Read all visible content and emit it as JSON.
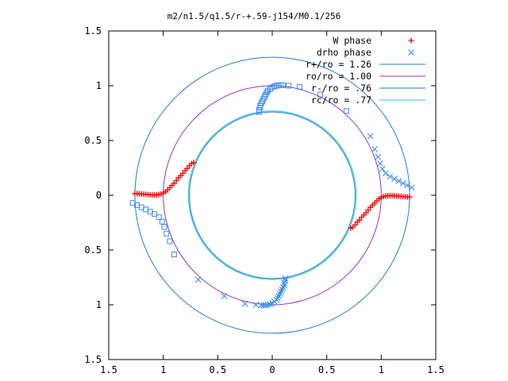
{
  "chart_data": {
    "type": "scatter",
    "title": "m2/n1.5/q1.5/r-+.59-j154/M0.1/256",
    "xlabel": "",
    "ylabel": "",
    "xlim": [
      -1.5,
      1.5
    ],
    "ylim": [
      -1.5,
      1.5
    ],
    "x_ticks": [
      -1.5,
      -1,
      -0.5,
      0,
      0.5,
      1,
      1.5
    ],
    "y_ticks": [
      -1.5,
      -1,
      -0.5,
      0,
      0.5,
      1,
      1.5
    ],
    "x_tick_labels": [
      "1.5",
      "1",
      "0.5",
      "0",
      "0.5",
      "1",
      "1.5"
    ],
    "y_tick_labels": [
      "1.5",
      "1",
      "0.5",
      "0",
      "0.5",
      "1",
      "1.5"
    ],
    "grid": false,
    "legend_position": "top-right",
    "series": [
      {
        "name": "W phase",
        "kind": "points",
        "marker": "plus",
        "color": "#ff0000",
        "branches": [
          {
            "points": [
              [
                -1.26,
                0.015
              ],
              [
                -1.24,
                0.015
              ],
              [
                -1.22,
                0.013
              ],
              [
                -1.2,
                0.012
              ],
              [
                -1.18,
                0.01
              ],
              [
                -1.16,
                0.008
              ],
              [
                -1.14,
                0.006
              ],
              [
                -1.12,
                0.004
              ],
              [
                -1.1,
                0.003
              ],
              [
                -1.08,
                0.003
              ],
              [
                -1.06,
                0.004
              ],
              [
                -1.04,
                0.007
              ],
              [
                -1.02,
                0.012
              ],
              [
                -1.0,
                0.02
              ],
              [
                -0.98,
                0.032
              ],
              [
                -0.96,
                0.05
              ],
              [
                -0.94,
                0.07
              ],
              [
                -0.92,
                0.09
              ],
              [
                -0.9,
                0.11
              ],
              [
                -0.88,
                0.135
              ],
              [
                -0.86,
                0.16
              ],
              [
                -0.84,
                0.18
              ],
              [
                -0.82,
                0.2
              ],
              [
                -0.8,
                0.225
              ],
              [
                -0.78,
                0.245
              ],
              [
                -0.76,
                0.27
              ],
              [
                -0.74,
                0.29
              ],
              [
                -0.72,
                0.3
              ]
            ]
          },
          {
            "points": [
              [
                1.26,
                -0.015
              ],
              [
                1.24,
                -0.015
              ],
              [
                1.22,
                -0.013
              ],
              [
                1.2,
                -0.012
              ],
              [
                1.18,
                -0.01
              ],
              [
                1.16,
                -0.008
              ],
              [
                1.14,
                -0.006
              ],
              [
                1.12,
                -0.004
              ],
              [
                1.1,
                -0.003
              ],
              [
                1.08,
                -0.003
              ],
              [
                1.06,
                -0.004
              ],
              [
                1.04,
                -0.007
              ],
              [
                1.02,
                -0.012
              ],
              [
                1.0,
                -0.02
              ],
              [
                0.98,
                -0.032
              ],
              [
                0.96,
                -0.05
              ],
              [
                0.94,
                -0.07
              ],
              [
                0.92,
                -0.09
              ],
              [
                0.9,
                -0.11
              ],
              [
                0.88,
                -0.135
              ],
              [
                0.86,
                -0.16
              ],
              [
                0.84,
                -0.18
              ],
              [
                0.82,
                -0.2
              ],
              [
                0.8,
                -0.225
              ],
              [
                0.78,
                -0.245
              ],
              [
                0.76,
                -0.27
              ],
              [
                0.74,
                -0.29
              ],
              [
                0.72,
                -0.3
              ]
            ]
          }
        ]
      },
      {
        "name": "drho phase",
        "kind": "points",
        "color": "#3a8ee8",
        "branches": [
          {
            "marker": "square",
            "points": [
              [
                -0.12,
                0.76
              ],
              [
                -0.12,
                0.78
              ],
              [
                -0.11,
                0.8
              ],
              [
                -0.11,
                0.82
              ],
              [
                -0.1,
                0.84
              ],
              [
                -0.09,
                0.86
              ],
              [
                -0.08,
                0.88
              ],
              [
                -0.07,
                0.9
              ],
              [
                -0.06,
                0.92
              ],
              [
                -0.05,
                0.94
              ],
              [
                -0.04,
                0.955
              ],
              [
                -0.02,
                0.97
              ],
              [
                0.0,
                0.985
              ],
              [
                0.02,
                0.995
              ],
              [
                0.04,
                1.0
              ],
              [
                0.06,
                1.005
              ],
              [
                0.08,
                1.005
              ],
              [
                0.1,
                1.005
              ],
              [
                0.15,
                1.0
              ],
              [
                0.25,
                0.99
              ],
              [
                0.44,
                0.92
              ],
              [
                0.68,
                0.77
              ]
            ]
          },
          {
            "marker": "square",
            "points": [
              [
                -1.28,
                -0.07
              ],
              [
                -1.24,
                -0.09
              ],
              [
                -1.2,
                -0.11
              ],
              [
                -1.16,
                -0.13
              ],
              [
                -1.12,
                -0.15
              ],
              [
                -1.08,
                -0.17
              ],
              [
                -1.04,
                -0.2
              ],
              [
                -1.01,
                -0.24
              ],
              [
                -0.99,
                -0.29
              ],
              [
                -0.97,
                -0.35
              ],
              [
                -0.94,
                -0.42
              ],
              [
                -0.9,
                -0.54
              ]
            ]
          },
          {
            "marker": "cross",
            "points": [
              [
                0.12,
                -0.76
              ],
              [
                0.12,
                -0.78
              ],
              [
                0.11,
                -0.8
              ],
              [
                0.11,
                -0.82
              ],
              [
                0.1,
                -0.84
              ],
              [
                0.09,
                -0.86
              ],
              [
                0.08,
                -0.88
              ],
              [
                0.07,
                -0.9
              ],
              [
                0.06,
                -0.92
              ],
              [
                0.05,
                -0.94
              ],
              [
                0.04,
                -0.955
              ],
              [
                0.02,
                -0.97
              ],
              [
                0.0,
                -0.985
              ],
              [
                -0.02,
                -0.995
              ],
              [
                -0.04,
                -1.0
              ],
              [
                -0.06,
                -1.005
              ],
              [
                -0.08,
                -1.005
              ],
              [
                -0.1,
                -1.005
              ],
              [
                -0.15,
                -1.0
              ],
              [
                -0.25,
                -0.99
              ],
              [
                -0.44,
                -0.92
              ],
              [
                -0.68,
                -0.77
              ]
            ]
          },
          {
            "marker": "cross",
            "points": [
              [
                1.28,
                0.07
              ],
              [
                1.24,
                0.09
              ],
              [
                1.2,
                0.11
              ],
              [
                1.16,
                0.13
              ],
              [
                1.12,
                0.15
              ],
              [
                1.08,
                0.17
              ],
              [
                1.04,
                0.2
              ],
              [
                1.01,
                0.24
              ],
              [
                0.99,
                0.29
              ],
              [
                0.97,
                0.35
              ],
              [
                0.94,
                0.42
              ],
              [
                0.9,
                0.54
              ]
            ]
          }
        ]
      },
      {
        "name": "r+/ro = 1.26",
        "kind": "circle",
        "radius": 1.26,
        "color": "#1f7fd0"
      },
      {
        "name": "ro/ro = 1.00",
        "kind": "circle",
        "radius": 1.0,
        "color": "#9b30c8"
      },
      {
        "name": "r-/ro = .76",
        "kind": "circle",
        "radius": 0.76,
        "color": "#1f7fd0"
      },
      {
        "name": "rc/ro = .77",
        "kind": "circle",
        "radius": 0.77,
        "color": "#20c8d8"
      }
    ]
  }
}
